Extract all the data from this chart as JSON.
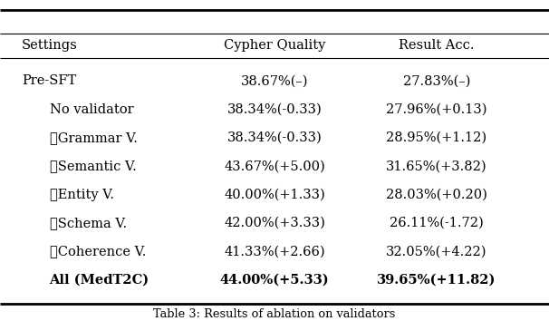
{
  "columns": [
    "Settings",
    "Cypher Quality",
    "Result Acc."
  ],
  "rows": [
    [
      "Pre-SFT",
      "38.67%(–)",
      "27.83%(–)",
      false
    ],
    [
      "No validator",
      "38.34%(-0.33)",
      "27.96%(+0.13)",
      false
    ],
    [
      "✓Grammar V.",
      "38.34%(-0.33)",
      "28.95%(+1.12)",
      false
    ],
    [
      "✓Semantic V.",
      "43.67%(+5.00)",
      "31.65%(+3.82)",
      false
    ],
    [
      "✓Entity V.",
      "40.00%(+1.33)",
      "28.03%(+0.20)",
      false
    ],
    [
      "✓Schema V.",
      "42.00%(+3.33)",
      "26.11%(-1.72)",
      false
    ],
    [
      "✓Coherence V.",
      "41.33%(+2.66)",
      "32.05%(+4.22)",
      false
    ],
    [
      "All (MedT2C)",
      "44.00%(+5.33)",
      "39.65%(+11.82)",
      true
    ]
  ],
  "caption": "Table 3: Results of ablation on validators",
  "bg_color": "#ffffff",
  "text_color": "#000000",
  "font_size": 10.5,
  "figsize": [
    6.06,
    3.54
  ],
  "dpi": 100
}
